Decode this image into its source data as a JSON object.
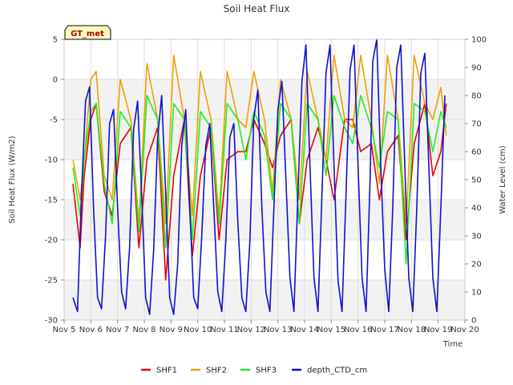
{
  "chart_data": {
    "type": "line",
    "title": "Soil Heat Flux",
    "xlabel": "Time",
    "ylabel_left": "Soil Heat Flux (W/m2)",
    "ylabel_right": "Water Level (cm)",
    "site_label": "GT_met",
    "xlim": [
      5,
      20
    ],
    "ylim_left": [
      -30,
      5
    ],
    "ylim_right": [
      0,
      100
    ],
    "x_ticks": [
      {
        "value": 5,
        "label": "Nov 5"
      },
      {
        "value": 6,
        "label": "Nov 6"
      },
      {
        "value": 7,
        "label": "Nov 7"
      },
      {
        "value": 8,
        "label": "Nov 8"
      },
      {
        "value": 9,
        "label": "Nov 9"
      },
      {
        "value": 10,
        "label": "Nov 10"
      },
      {
        "value": 11,
        "label": "Nov 11"
      },
      {
        "value": 12,
        "label": "Nov 12"
      },
      {
        "value": 13,
        "label": "Nov 13"
      },
      {
        "value": 14,
        "label": "Nov 14"
      },
      {
        "value": 15,
        "label": "Nov 15"
      },
      {
        "value": 16,
        "label": "Nov 16"
      },
      {
        "value": 17,
        "label": "Nov 17"
      },
      {
        "value": 18,
        "label": "Nov 18"
      },
      {
        "value": 19,
        "label": "Nov 19"
      },
      {
        "value": 20,
        "label": "Nov 20"
      }
    ],
    "y_ticks_left": [
      5,
      0,
      -5,
      -10,
      -15,
      -20,
      -25,
      -30
    ],
    "y_ticks_right": [
      100,
      90,
      80,
      70,
      60,
      50,
      40,
      30,
      20,
      10,
      0
    ],
    "bands_left": [
      [
        -10,
        0
      ],
      [
        -20,
        -15
      ],
      [
        -30,
        -25
      ]
    ],
    "colors": {
      "SHF1": "#ee0000",
      "SHF2": "#f0a000",
      "SHF3": "#22ee22",
      "depth_CTD_cm": "#1010cc"
    },
    "legend": [
      "SHF1",
      "SHF2",
      "SHF3",
      "depth_CTD_cm"
    ],
    "series": [
      {
        "name": "SHF1",
        "axis": "left",
        "x": [
          5.33,
          5.6,
          5.75,
          6.0,
          6.2,
          6.5,
          6.8,
          7.1,
          7.5,
          7.8,
          8.1,
          8.5,
          8.8,
          9.1,
          9.5,
          9.8,
          10.1,
          10.5,
          10.8,
          11.1,
          11.5,
          11.8,
          12.1,
          12.5,
          12.8,
          13.1,
          13.5,
          13.8,
          14.1,
          14.5,
          14.8,
          15.1,
          15.5,
          15.8,
          16.1,
          16.5,
          16.8,
          17.1,
          17.5,
          17.8,
          18.1,
          18.5,
          18.8,
          19.1,
          19.3
        ],
        "y": [
          -13,
          -21,
          -12,
          -5,
          -3,
          -14,
          -17,
          -8,
          -6,
          -21,
          -10,
          -6,
          -25,
          -12,
          -5,
          -22,
          -12,
          -6,
          -20,
          -10,
          -9,
          -9,
          -5,
          -8,
          -11,
          -7,
          -5,
          -18,
          -10,
          -6,
          -10,
          -15,
          -5,
          -5,
          -9,
          -8,
          -15,
          -9,
          -7,
          -20,
          -8,
          -3,
          -12,
          -9,
          -3
        ]
      },
      {
        "name": "SHF2",
        "axis": "left",
        "x": [
          5.33,
          5.6,
          5.75,
          6.0,
          6.2,
          6.5,
          6.8,
          7.1,
          7.5,
          7.8,
          8.1,
          8.5,
          8.8,
          9.1,
          9.5,
          9.8,
          10.1,
          10.5,
          10.8,
          11.1,
          11.5,
          11.8,
          12.1,
          12.5,
          12.8,
          13.1,
          13.5,
          13.8,
          14.1,
          14.5,
          14.8,
          15.1,
          15.5,
          15.8,
          16.1,
          16.5,
          16.8,
          17.1,
          17.5,
          17.8,
          18.1,
          18.5,
          18.8,
          19.1,
          19.3
        ],
        "y": [
          -10,
          -15,
          -10,
          0,
          1,
          -12,
          -15,
          0,
          -5,
          -18,
          2,
          -5,
          -18,
          3,
          -5,
          -17,
          1,
          -5,
          -17,
          1,
          -5,
          -6,
          1,
          -5,
          -14,
          0,
          -5,
          -15,
          1,
          -5,
          -10,
          3,
          -5,
          -6,
          3,
          -5,
          -13,
          3,
          -5,
          -18,
          3,
          -3,
          -5,
          -1,
          -7
        ]
      },
      {
        "name": "SHF3",
        "axis": "left",
        "x": [
          5.33,
          5.6,
          5.75,
          6.0,
          6.2,
          6.5,
          6.8,
          7.1,
          7.5,
          7.8,
          8.1,
          8.5,
          8.8,
          9.1,
          9.5,
          9.8,
          10.1,
          10.5,
          10.8,
          11.1,
          11.5,
          11.8,
          12.1,
          12.5,
          12.8,
          13.1,
          13.5,
          13.8,
          14.1,
          14.5,
          14.8,
          15.1,
          15.5,
          15.8,
          16.1,
          16.5,
          16.8,
          17.1,
          17.5,
          17.8,
          18.1,
          18.5,
          18.8,
          19.1,
          19.3
        ],
        "y": [
          -11,
          -17,
          -10,
          -4,
          -3,
          -13,
          -18,
          -4,
          -6,
          -19,
          -2,
          -5,
          -21,
          -3,
          -5,
          -20,
          -4,
          -6,
          -18,
          -3,
          -5,
          -10,
          -4,
          -7,
          -15,
          -3,
          -5,
          -18,
          -3,
          -5,
          -12,
          -2,
          -6,
          -8,
          -2,
          -6,
          -11,
          -4,
          -5,
          -23,
          -3,
          -4,
          -9,
          -4,
          -6
        ]
      },
      {
        "name": "depth_CTD_cm",
        "axis": "right",
        "x": [
          5.33,
          5.5,
          5.65,
          5.8,
          5.95,
          6.1,
          6.25,
          6.4,
          6.55,
          6.7,
          6.85,
          7.0,
          7.15,
          7.3,
          7.45,
          7.6,
          7.75,
          7.9,
          8.05,
          8.2,
          8.35,
          8.5,
          8.65,
          8.8,
          8.95,
          9.1,
          9.25,
          9.4,
          9.55,
          9.7,
          9.85,
          10.0,
          10.15,
          10.3,
          10.45,
          10.6,
          10.75,
          10.9,
          11.05,
          11.2,
          11.35,
          11.5,
          11.65,
          11.8,
          11.95,
          12.1,
          12.25,
          12.4,
          12.55,
          12.7,
          12.85,
          13.0,
          13.15,
          13.3,
          13.45,
          13.6,
          13.75,
          13.9,
          14.05,
          14.2,
          14.35,
          14.5,
          14.65,
          14.8,
          14.95,
          15.1,
          15.25,
          15.4,
          15.55,
          15.7,
          15.85,
          16.0,
          16.15,
          16.3,
          16.45,
          16.55,
          16.7,
          16.85,
          17.0,
          17.15,
          17.3,
          17.45,
          17.6,
          17.75,
          17.9,
          18.05,
          18.2,
          18.35,
          18.5,
          18.65,
          18.8,
          18.95,
          19.1,
          19.25
        ],
        "y": [
          8,
          3,
          45,
          78,
          83,
          40,
          8,
          4,
          30,
          70,
          75,
          40,
          10,
          4,
          26,
          68,
          78,
          45,
          8,
          2,
          25,
          65,
          80,
          45,
          8,
          2,
          20,
          62,
          75,
          40,
          8,
          4,
          30,
          62,
          70,
          40,
          10,
          3,
          28,
          65,
          70,
          35,
          8,
          3,
          28,
          72,
          82,
          40,
          10,
          3,
          40,
          75,
          85,
          50,
          15,
          3,
          45,
          85,
          98,
          55,
          15,
          3,
          45,
          88,
          98,
          55,
          14,
          3,
          45,
          89,
          98,
          55,
          15,
          3,
          50,
          92,
          100,
          55,
          18,
          3,
          40,
          90,
          98,
          55,
          15,
          3,
          40,
          88,
          95,
          55,
          15,
          3,
          40,
          80
        ]
      }
    ]
  }
}
